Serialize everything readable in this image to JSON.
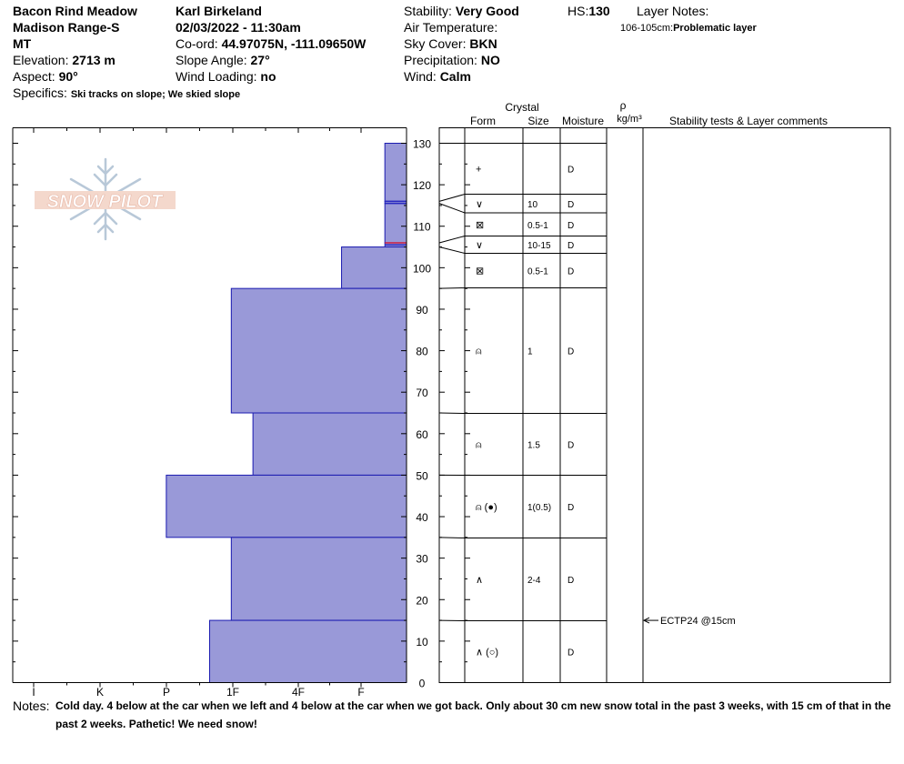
{
  "header": {
    "location": "Bacon Rind Meadow",
    "range": "Madison Range-S",
    "state": "MT",
    "elevation_label": "Elevation:",
    "elevation": "2713 m",
    "aspect_label": "Aspect:",
    "aspect": "90°",
    "specifics_label": "Specifics:",
    "specifics": "Ski tracks on slope; We skied slope",
    "observer": "Karl Birkeland",
    "datetime": "02/03/2022 - 11:30am",
    "coord_label": "Co-ord:",
    "coord": "44.97075N, -111.09650W",
    "slope_label": "Slope Angle:",
    "slope": "27°",
    "wind_loading_label": "Wind Loading:",
    "wind_loading": "no",
    "stability_label": "Stability:",
    "stability": "Very Good",
    "air_temp_label": "Air Temperature:",
    "sky_label": "Sky Cover:",
    "sky": "BKN",
    "precip_label": "Precipitation:",
    "precip": "NO",
    "wind_label": "Wind:",
    "wind": "Calm",
    "hs_label": "HS:",
    "hs": "130",
    "layer_notes_label": "Layer Notes:",
    "layer_note_range": "106-105cm:",
    "layer_note_text": "Problematic layer"
  },
  "logo": {
    "text": "SNOW PILOT"
  },
  "columns": {
    "crystal": "Crystal",
    "form": "Form",
    "size": "Size",
    "moisture": "Moisture",
    "rho": "ρ",
    "density_unit": "kg/m³",
    "stability_tests": "Stability tests & Layer comments"
  },
  "hardness_axis": [
    "I",
    "K",
    "P",
    "1F",
    "4F",
    "F"
  ],
  "depth_ticks": [
    "0",
    "10",
    "20",
    "30",
    "40",
    "50",
    "60",
    "70",
    "80",
    "90",
    "100",
    "110",
    "120",
    "130"
  ],
  "chart_data": {
    "type": "bar",
    "title": "",
    "xlabel": "",
    "ylabel": "",
    "y_range_cm": [
      0,
      130
    ],
    "hardness_scale": [
      "F",
      "4F",
      "1F",
      "P",
      "K",
      "I"
    ],
    "layers": [
      {
        "top": 130,
        "bottom": 116,
        "hardness": "F-",
        "form": "+",
        "size": "",
        "moisture": "D"
      },
      {
        "top": 116,
        "bottom": 115.5,
        "hardness": "F-",
        "form": "∨",
        "size": "10",
        "moisture": "D"
      },
      {
        "top": 115.5,
        "bottom": 106,
        "hardness": "F-",
        "form": "⊠",
        "size": "0.5-1",
        "moisture": "D"
      },
      {
        "top": 106,
        "bottom": 105,
        "hardness": "F-",
        "form": "∨",
        "size": "10-15",
        "moisture": "D"
      },
      {
        "top": 105,
        "bottom": 95,
        "hardness": "F+",
        "form": "⊠",
        "size": "0.5-1",
        "moisture": "D"
      },
      {
        "top": 95,
        "bottom": 65,
        "hardness": "1F",
        "form": "⍝",
        "size": "1",
        "moisture": "D"
      },
      {
        "top": 65,
        "bottom": 50,
        "hardness": "4F+",
        "form": "⍝",
        "size": "1.5",
        "moisture": "D"
      },
      {
        "top": 50,
        "bottom": 35,
        "hardness": "P",
        "form": "⍝ (●)",
        "size": "1(0.5)",
        "moisture": "D"
      },
      {
        "top": 35,
        "bottom": 15,
        "hardness": "1F",
        "form": "∧",
        "size": "2-4",
        "moisture": "D"
      },
      {
        "top": 15,
        "bottom": 0,
        "hardness": "1F+",
        "form": "∧ (○)",
        "size": "",
        "moisture": "D"
      }
    ],
    "hardness_widths": {
      "F-": 0.055,
      "F+": 0.165,
      "4F+": 0.39,
      "1F": 0.445,
      "1F+": 0.5,
      "P": 0.61
    },
    "highlight_lines": [
      {
        "depth": 116,
        "color": "#2a2ac0"
      },
      {
        "depth": 115.5,
        "color": "#2a2ac0"
      },
      {
        "depth": 106,
        "color": "#d02040"
      },
      {
        "depth": 105.5,
        "color": "#2a2ac0"
      }
    ],
    "stability_tests": [
      {
        "depth": 15,
        "label": "ECTP24 @15cm"
      }
    ],
    "bar_color": "#9999d8",
    "bar_edge": "#1a1ab0"
  },
  "notes": {
    "label": "Notes:",
    "text": "Cold day.  4 below at the car when we left and 4 below at the car when we got back.  Only about 30 cm new snow total in the past 3 weeks, with 15 cm  of that in the past 2 weeks.  Pathetic!  We need snow!"
  }
}
